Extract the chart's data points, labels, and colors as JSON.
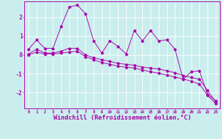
{
  "background_color": "#caeeed",
  "line_color": "#aa00aa",
  "grid_color": "#ffffff",
  "xlabel": "Windchill (Refroidissement éolien,°C)",
  "xlabel_fontsize": 6.5,
  "ytick_vals": [
    -2,
    -1,
    0,
    1,
    2
  ],
  "ytick_labels": [
    "-2",
    "-1",
    "0",
    "1",
    "2"
  ],
  "ylim": [
    -2.85,
    2.85
  ],
  "xlim": [
    -0.5,
    23.5
  ],
  "curve1_x": [
    0,
    1,
    2,
    3,
    4,
    5,
    6,
    7,
    8,
    9,
    10,
    11,
    12,
    13,
    14,
    15,
    16,
    17,
    18,
    19,
    20,
    21,
    22,
    23
  ],
  "curve1_y": [
    0.3,
    0.8,
    0.35,
    0.35,
    1.5,
    2.55,
    2.65,
    2.2,
    0.75,
    0.1,
    0.75,
    0.45,
    0.05,
    1.3,
    0.75,
    1.3,
    0.75,
    0.8,
    0.3,
    -1.3,
    -0.9,
    -0.85,
    -2.1,
    -2.45
  ],
  "curve2_x": [
    0,
    1,
    2,
    3,
    4,
    5,
    6,
    7,
    8,
    9,
    10,
    11,
    12,
    13,
    14,
    15,
    16,
    17,
    18,
    19,
    20,
    21,
    22,
    23
  ],
  "curve2_y": [
    0.05,
    0.3,
    0.1,
    0.1,
    0.2,
    0.35,
    0.35,
    0.0,
    -0.15,
    -0.25,
    -0.35,
    -0.45,
    -0.5,
    -0.55,
    -0.65,
    -0.7,
    -0.75,
    -0.85,
    -0.95,
    -1.1,
    -1.2,
    -1.3,
    -1.9,
    -2.5
  ],
  "curve3_x": [
    0,
    1,
    2,
    3,
    4,
    5,
    6,
    7,
    8,
    9,
    10,
    11,
    12,
    13,
    14,
    15,
    16,
    17,
    18,
    19,
    20,
    21,
    22,
    23
  ],
  "curve3_y": [
    0.0,
    0.15,
    0.05,
    0.05,
    0.1,
    0.15,
    0.2,
    -0.1,
    -0.25,
    -0.4,
    -0.5,
    -0.6,
    -0.65,
    -0.7,
    -0.8,
    -0.9,
    -0.98,
    -1.08,
    -1.18,
    -1.28,
    -1.4,
    -1.55,
    -2.15,
    -2.6
  ]
}
